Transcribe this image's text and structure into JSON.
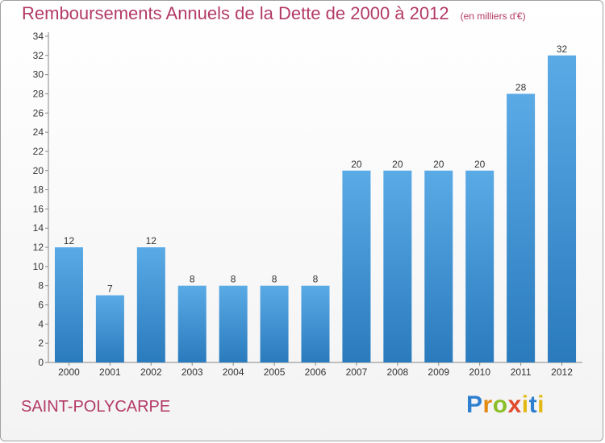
{
  "header": {
    "title": "Remboursements Annuels de la Dette de 2000 à 2012",
    "subtitle": "(en milliers d'€)"
  },
  "footer": {
    "commune": "SAINT-POLYCARPE",
    "logo_text": "Proxiti"
  },
  "colors": {
    "bar_top": "#5aaae6",
    "bar_bottom": "#2a7bbd",
    "title": "#b33a67"
  },
  "chart_data": {
    "type": "bar",
    "title": "Remboursements Annuels de la Dette de 2000 à 2012",
    "subtitle": "(en milliers d'€)",
    "categories": [
      "2000",
      "2001",
      "2002",
      "2003",
      "2004",
      "2005",
      "2006",
      "2007",
      "2008",
      "2009",
      "2010",
      "2011",
      "2012"
    ],
    "values": [
      12,
      7,
      12,
      8,
      8,
      8,
      8,
      20,
      20,
      20,
      20,
      28,
      32
    ],
    "ylim": [
      0,
      34
    ],
    "yticks": [
      0,
      2,
      4,
      6,
      8,
      10,
      12,
      14,
      16,
      18,
      20,
      22,
      24,
      26,
      28,
      30,
      32,
      34
    ],
    "grid": false,
    "legend": "none"
  }
}
